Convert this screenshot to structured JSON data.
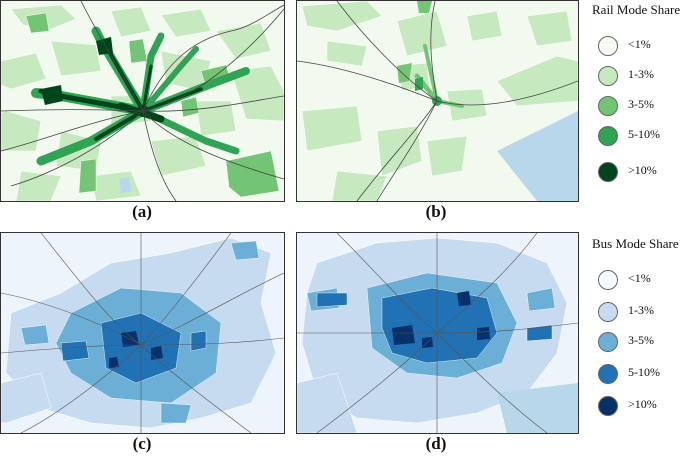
{
  "panels": [
    {
      "id": "a",
      "caption": "(a)",
      "mode": "rail"
    },
    {
      "id": "b",
      "caption": "(b)",
      "mode": "rail"
    },
    {
      "id": "c",
      "caption": "(c)",
      "mode": "bus"
    },
    {
      "id": "d",
      "caption": "(d)",
      "mode": "bus"
    }
  ],
  "legends": {
    "rail": {
      "title": "Rail Mode Share",
      "items": [
        {
          "label": "<1%",
          "color": "#f7fcf5"
        },
        {
          "label": "1-3%",
          "color": "#c7e9c0"
        },
        {
          "label": "3-5%",
          "color": "#74c476"
        },
        {
          "label": "5-10%",
          "color": "#31a354"
        },
        {
          "label": ">10%",
          "color": "#00441b"
        }
      ]
    },
    "bus": {
      "title": "Bus Mode Share",
      "items": [
        {
          "label": "<1%",
          "color": "#f7fbff"
        },
        {
          "label": "1-3%",
          "color": "#c6dbef"
        },
        {
          "label": "3-5%",
          "color": "#6baed6"
        },
        {
          "label": "5-10%",
          "color": "#2171b5"
        },
        {
          "label": ">10%",
          "color": "#08306b"
        }
      ]
    }
  },
  "colors": {
    "rail_background": "#f2f9ef",
    "bus_background": "#eef4fb",
    "water": "#b9d7ea",
    "rail_lines": "#444444"
  }
}
